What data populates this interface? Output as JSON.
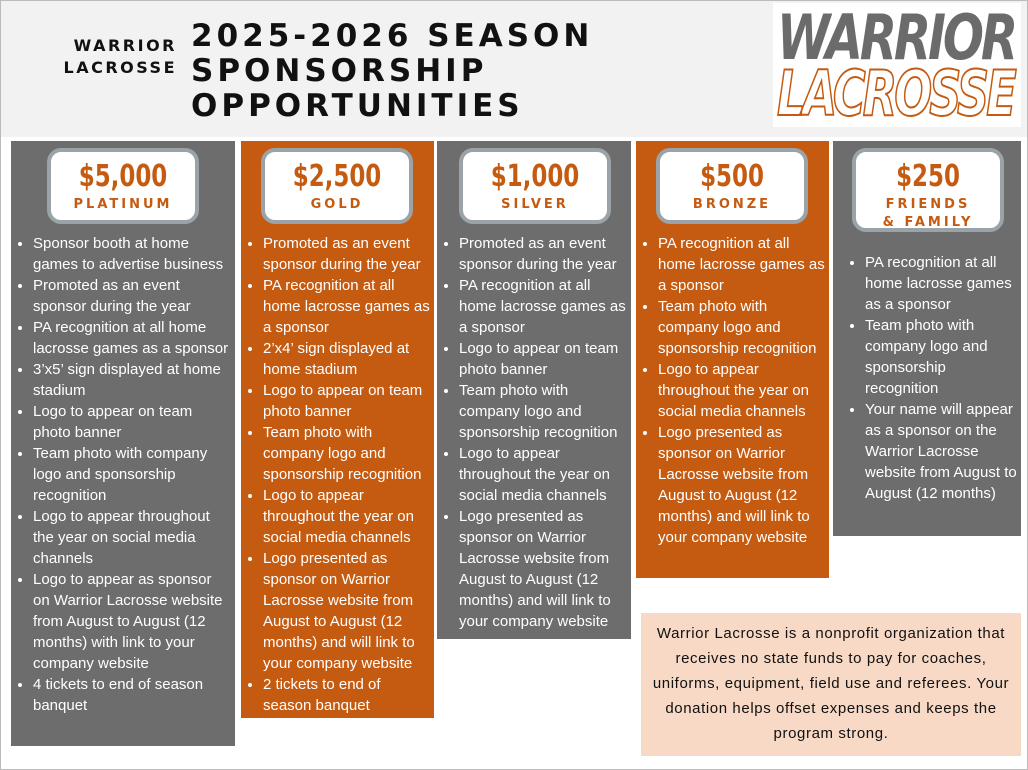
{
  "header": {
    "org_lines": [
      "WARRIOR",
      "LACROSSE"
    ],
    "title_lines": [
      "2025-2026 SEASON",
      "SPONSORSHIP",
      "OPPORTUNITIES"
    ]
  },
  "logo": {
    "lines": [
      "WARRIOR",
      "LACROSSE"
    ]
  },
  "tiers": [
    {
      "price": "$5,000",
      "name": "PLATINUM",
      "benefits": [
        "Sponsor booth at home games to advertise business",
        "Promoted as an event sponsor during the year",
        "PA recognition at all home lacrosse games as a sponsor",
        "3’x5’ sign displayed at home stadium",
        "Logo to appear on team photo banner",
        "Team photo with company logo and sponsorship recognition",
        "Logo to appear throughout the year on social media channels",
        "Logo to appear as sponsor on Warrior Lacrosse website from August to August (12 months) with link to your company website",
        "4 tickets to end of season banquet"
      ]
    },
    {
      "price": "$2,500",
      "name": "GOLD",
      "benefits": [
        "Promoted as an event sponsor during the year",
        "PA recognition at all home lacrosse games as a sponsor",
        "2’x4’ sign displayed at home stadium",
        "Logo to appear on team photo banner",
        "Team photo with company logo and sponsorship recognition",
        "Logo to appear throughout the year on social media channels",
        "Logo presented as sponsor on Warrior Lacrosse website from August to August (12 months) and will link to your company website",
        "2 tickets to end of season banquet"
      ]
    },
    {
      "price": "$1,000",
      "name": "SILVER",
      "benefits": [
        "Promoted as an event sponsor during the year",
        "PA recognition at all home lacrosse games as a sponsor",
        "Logo to appear on team photo banner",
        "Team photo with company logo and sponsorship recognition",
        "Logo to appear throughout the year on social media channels",
        "Logo presented as sponsor on Warrior Lacrosse website from August to August (12 months) and will link to your company website"
      ]
    },
    {
      "price": "$500",
      "name": "BRONZE",
      "benefits": [
        "PA recognition at all home lacrosse games as a sponsor",
        "Team photo with company logo and sponsorship recognition",
        "Logo to appear throughout the year on social media channels",
        "Logo presented as sponsor on Warrior Lacrosse website from August to August (12 months) and will link to your company website"
      ]
    },
    {
      "price": "$250",
      "name": "FRIENDS & FAMILY",
      "benefits": [
        "PA recognition at all home lacrosse games as a sponsor",
        "Team photo with company logo and sponsorship recognition",
        "Your name will appear as a sponsor on the Warrior Lacrosse website from August to August (12 months)"
      ]
    }
  ],
  "note": {
    "text": "Warrior Lacrosse is a nonprofit organization that receives no state funds to pay for coaches, uniforms, equipment, field use and referees. Your donation helps offset expenses and keeps the program strong."
  }
}
